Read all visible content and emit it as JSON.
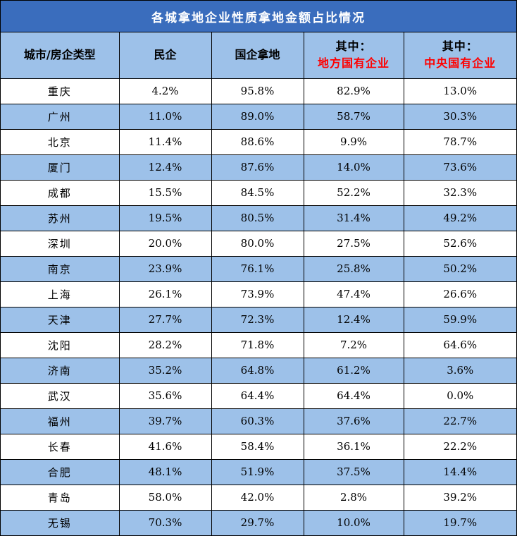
{
  "title": "各城拿地企业性质拿地金额占比情况",
  "header": {
    "col0": "城市/房企类型",
    "col1": "民企",
    "col2": "国企拿地",
    "col3_prefix": "其中：",
    "col3_sub": "地方国有企业",
    "col4_prefix": "其中：",
    "col4_sub": "中央国有企业"
  },
  "colors": {
    "title_bg": "#3a6dbd",
    "band": "#9dc1e9",
    "highlight_text": "#ff0000"
  },
  "chart_data": {
    "type": "table",
    "title": "各城拿地企业性质拿地金额占比情况",
    "columns": [
      "城市/房企类型",
      "民企",
      "国企拿地",
      "其中：地方国有企业",
      "其中：中央国有企业"
    ],
    "rows": [
      {
        "city": "重庆",
        "private": "4.2%",
        "soe": "95.8%",
        "local_soe": "82.9%",
        "central_soe": "13.0%"
      },
      {
        "city": "广州",
        "private": "11.0%",
        "soe": "89.0%",
        "local_soe": "58.7%",
        "central_soe": "30.3%"
      },
      {
        "city": "北京",
        "private": "11.4%",
        "soe": "88.6%",
        "local_soe": "9.9%",
        "central_soe": "78.7%"
      },
      {
        "city": "厦门",
        "private": "12.4%",
        "soe": "87.6%",
        "local_soe": "14.0%",
        "central_soe": "73.6%"
      },
      {
        "city": "成都",
        "private": "15.5%",
        "soe": "84.5%",
        "local_soe": "52.2%",
        "central_soe": "32.3%"
      },
      {
        "city": "苏州",
        "private": "19.5%",
        "soe": "80.5%",
        "local_soe": "31.4%",
        "central_soe": "49.2%"
      },
      {
        "city": "深圳",
        "private": "20.0%",
        "soe": "80.0%",
        "local_soe": "27.5%",
        "central_soe": "52.6%"
      },
      {
        "city": "南京",
        "private": "23.9%",
        "soe": "76.1%",
        "local_soe": "25.8%",
        "central_soe": "50.2%"
      },
      {
        "city": "上海",
        "private": "26.1%",
        "soe": "73.9%",
        "local_soe": "47.4%",
        "central_soe": "26.6%"
      },
      {
        "city": "天津",
        "private": "27.7%",
        "soe": "72.3%",
        "local_soe": "12.4%",
        "central_soe": "59.9%"
      },
      {
        "city": "沈阳",
        "private": "28.2%",
        "soe": "71.8%",
        "local_soe": "7.2%",
        "central_soe": "64.6%"
      },
      {
        "city": "济南",
        "private": "35.2%",
        "soe": "64.8%",
        "local_soe": "61.2%",
        "central_soe": "3.6%"
      },
      {
        "city": "武汉",
        "private": "35.6%",
        "soe": "64.4%",
        "local_soe": "64.4%",
        "central_soe": "0.0%"
      },
      {
        "city": "福州",
        "private": "39.7%",
        "soe": "60.3%",
        "local_soe": "37.6%",
        "central_soe": "22.7%"
      },
      {
        "city": "长春",
        "private": "41.6%",
        "soe": "58.4%",
        "local_soe": "36.1%",
        "central_soe": "22.2%"
      },
      {
        "city": "合肥",
        "private": "48.1%",
        "soe": "51.9%",
        "local_soe": "37.5%",
        "central_soe": "14.4%"
      },
      {
        "city": "青岛",
        "private": "58.0%",
        "soe": "42.0%",
        "local_soe": "2.8%",
        "central_soe": "39.2%"
      },
      {
        "city": "无锡",
        "private": "70.3%",
        "soe": "29.7%",
        "local_soe": "10.0%",
        "central_soe": "19.7%"
      }
    ]
  }
}
